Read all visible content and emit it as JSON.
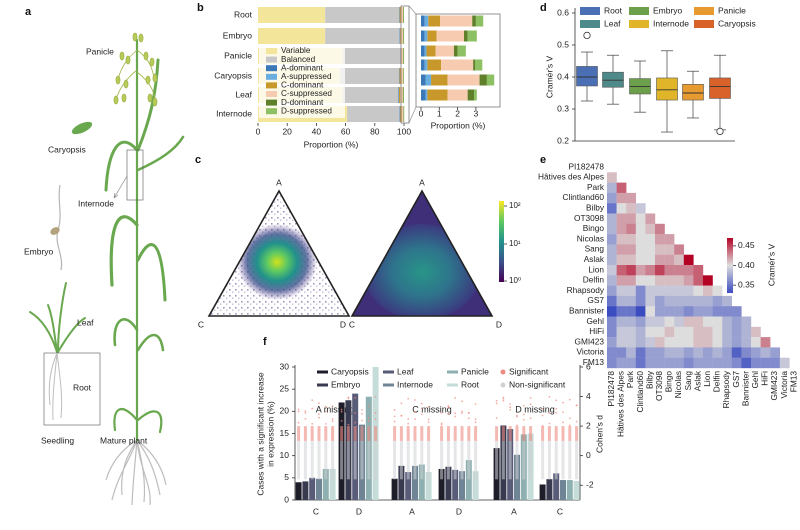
{
  "panel_labels": {
    "a": "a",
    "b": "b",
    "c": "c",
    "d": "d",
    "e": "e",
    "f": "f"
  },
  "panel_a": {
    "labels": {
      "panicle": "Panicle",
      "caryopsis": "Caryopsis",
      "internode": "Internode",
      "embryo": "Embryo",
      "leaf": "Leaf",
      "root": "Root",
      "seedling": "Seedling",
      "mature_plant": "Mature plant"
    }
  },
  "chart_data": {
    "b": {
      "type": "bar",
      "orientation": "horizontal",
      "stacked": true,
      "categories": [
        "Root",
        "Embryo",
        "Panicle",
        "Caryopsis",
        "Leaf",
        "Internode"
      ],
      "xlabel": "Proportion (%)",
      "xlim": [
        0,
        100
      ],
      "xticks": [
        "0",
        "20",
        "40",
        "60",
        "80",
        "100"
      ],
      "legend_placement": "center-left",
      "series": [
        {
          "name": "Variable",
          "color": "#f3e59a",
          "values": [
            46,
            46,
            58,
            56,
            58,
            61
          ]
        },
        {
          "name": "Balanced",
          "color": "#c8c8c8",
          "values": [
            50.6,
            51.0,
            39.6,
            40.6,
            38.0,
            36.0
          ]
        },
        {
          "name": "A-dominant",
          "color": "#3a78b8",
          "values": [
            0.2,
            0.2,
            0.2,
            0.2,
            0.25,
            0.25
          ]
        },
        {
          "name": "A-suppressed",
          "color": "#6aaee0",
          "values": [
            0.2,
            0.15,
            0.1,
            0.15,
            0.3,
            0.1
          ]
        },
        {
          "name": "C-dominant",
          "color": "#c9982a",
          "values": [
            0.65,
            0.5,
            0.5,
            0.75,
            0.9,
            1.1
          ]
        },
        {
          "name": "C-suppressed",
          "color": "#f7cbb0",
          "values": [
            1.75,
            1.5,
            1.0,
            1.75,
            1.75,
            1.1
          ]
        },
        {
          "name": "D-dominant",
          "color": "#5f7f2a",
          "values": [
            0.2,
            0.2,
            0.2,
            0.1,
            0.4,
            0.35
          ]
        },
        {
          "name": "D-suppressed",
          "color": "#8cc063",
          "values": [
            0.4,
            0.5,
            0.45,
            0.4,
            0.4,
            0.15
          ]
        }
      ],
      "inset": {
        "xlabel": "Proportion (%)",
        "xlim": [
          0,
          3.6
        ],
        "xticks": [
          "0",
          "1",
          "2",
          "3"
        ],
        "shows_series": [
          "A-dominant",
          "A-suppressed",
          "C-dominant",
          "C-suppressed",
          "D-dominant",
          "D-suppressed"
        ]
      }
    },
    "c": {
      "type": "heatmap",
      "subtype": "ternary density",
      "vertex_labels": {
        "top": "A",
        "left": "C",
        "right": "D"
      },
      "colorbar": {
        "scale": "log",
        "colormap": "viridis",
        "ticks": [
          "10²",
          "10¹",
          "10⁰"
        ]
      }
    },
    "d": {
      "type": "box",
      "ylabel": "Cramér's V",
      "ylim": [
        0.2,
        0.6
      ],
      "yticks": [
        "0.2",
        "0.3",
        "0.4",
        "0.5",
        "0.6"
      ],
      "legend_placement": "top",
      "boxes": [
        {
          "name": "Root",
          "color": "#4a6fb5",
          "whisker_low": 0.325,
          "q1": 0.372,
          "median": 0.4,
          "q3": 0.433,
          "whisker_high": 0.478,
          "outliers": [
            0.53
          ]
        },
        {
          "name": "Leaf",
          "color": "#4f8a8b",
          "whisker_low": 0.315,
          "q1": 0.368,
          "median": 0.39,
          "q3": 0.415,
          "whisker_high": 0.468,
          "outliers": []
        },
        {
          "name": "Embryo",
          "color": "#6ca04a",
          "whisker_low": 0.29,
          "q1": 0.347,
          "median": 0.37,
          "q3": 0.395,
          "whisker_high": 0.45,
          "outliers": []
        },
        {
          "name": "Internode",
          "color": "#e0b52a",
          "whisker_low": 0.228,
          "q1": 0.328,
          "median": 0.36,
          "q3": 0.397,
          "whisker_high": 0.482,
          "outliers": []
        },
        {
          "name": "Panicle",
          "color": "#e79a2f",
          "whisker_low": 0.272,
          "q1": 0.328,
          "median": 0.35,
          "q3": 0.377,
          "whisker_high": 0.418,
          "outliers": []
        },
        {
          "name": "Caryopsis",
          "color": "#d9622b",
          "whisker_low": 0.235,
          "q1": 0.333,
          "median": 0.37,
          "q3": 0.397,
          "whisker_high": 0.468,
          "outliers": [
            0.23
          ]
        }
      ]
    },
    "e": {
      "type": "heatmap",
      "subtype": "lower triangle",
      "colormap": "coolwarm",
      "colorbar": {
        "label": "Cramér's V",
        "range": [
          0.33,
          0.47
        ],
        "ticks": [
          "0.45",
          "0.40",
          "0.35"
        ]
      },
      "labels": [
        "PI182478",
        "Hâtives des Alpes",
        "Park",
        "Clintland60",
        "Bilby",
        "OT3098",
        "Bingo",
        "Nicolas",
        "Sang",
        "Aslak",
        "Lion",
        "Delfin",
        "Rhapsody",
        "GS7",
        "Bannister",
        "Gehl",
        "HiFi",
        "GMI423",
        "Victoria",
        "FM13"
      ],
      "values": [
        [],
        [
          0.41
        ],
        [
          0.38,
          0.44
        ],
        [
          0.37,
          0.42,
          0.42
        ],
        [
          0.35,
          0.4,
          0.41,
          0.39
        ],
        [
          0.38,
          0.42,
          0.42,
          0.4,
          0.42
        ],
        [
          0.38,
          0.42,
          0.43,
          0.4,
          0.41,
          0.43
        ],
        [
          0.37,
          0.41,
          0.41,
          0.4,
          0.4,
          0.42,
          0.42
        ],
        [
          0.38,
          0.42,
          0.42,
          0.4,
          0.4,
          0.41,
          0.41,
          0.43
        ],
        [
          0.38,
          0.41,
          0.41,
          0.4,
          0.4,
          0.42,
          0.42,
          0.41,
          0.47
        ],
        [
          0.39,
          0.44,
          0.45,
          0.42,
          0.43,
          0.45,
          0.43,
          0.43,
          0.43,
          0.44
        ],
        [
          0.38,
          0.42,
          0.42,
          0.4,
          0.4,
          0.41,
          0.41,
          0.41,
          0.42,
          0.44,
          0.47
        ],
        [
          0.37,
          0.39,
          0.39,
          0.36,
          0.39,
          0.39,
          0.39,
          0.39,
          0.39,
          0.4,
          0.41,
          0.4
        ],
        [
          0.35,
          0.38,
          0.38,
          0.36,
          0.39,
          0.37,
          0.38,
          0.38,
          0.38,
          0.38,
          0.38,
          0.37,
          0.38
        ],
        [
          0.33,
          0.35,
          0.35,
          0.33,
          0.4,
          0.37,
          0.37,
          0.37,
          0.36,
          0.37,
          0.37,
          0.36,
          0.36,
          0.36
        ],
        [
          0.36,
          0.38,
          0.38,
          0.37,
          0.39,
          0.39,
          0.4,
          0.39,
          0.41,
          0.41,
          0.4,
          0.4,
          0.38,
          0.37,
          0.38
        ],
        [
          0.36,
          0.39,
          0.39,
          0.38,
          0.4,
          0.4,
          0.41,
          0.4,
          0.4,
          0.41,
          0.41,
          0.4,
          0.38,
          0.37,
          0.38,
          0.41
        ],
        [
          0.37,
          0.39,
          0.39,
          0.38,
          0.39,
          0.41,
          0.4,
          0.4,
          0.4,
          0.41,
          0.41,
          0.4,
          0.38,
          0.37,
          0.38,
          0.4,
          0.43
        ],
        [
          0.36,
          0.36,
          0.38,
          0.35,
          0.37,
          0.37,
          0.38,
          0.38,
          0.37,
          0.38,
          0.37,
          0.38,
          0.37,
          0.34,
          0.36,
          0.37,
          0.38,
          0.37
        ],
        [
          0.36,
          0.37,
          0.37,
          0.35,
          0.37,
          0.37,
          0.37,
          0.37,
          0.36,
          0.37,
          0.37,
          0.37,
          0.37,
          0.36,
          0.34,
          0.36,
          0.36,
          0.36,
          0.39
        ]
      ]
    },
    "f": {
      "type": "bar",
      "grouped": true,
      "ylabel_lines": [
        "Cases with a significant increase",
        "in expression (%)"
      ],
      "ylim": [
        0,
        30
      ],
      "yticks": [
        "0",
        "5",
        "10",
        "15",
        "20",
        "25",
        "30"
      ],
      "y2label": "Cohen's d",
      "y2lim": [
        -3,
        6
      ],
      "y2ticks": [
        "-2",
        "0",
        "2",
        "4",
        "6"
      ],
      "legend": {
        "tissues": [
          "Caryopsis",
          "Embryo",
          "Leaf",
          "Internode",
          "Panicle",
          "Root"
        ],
        "points": [
          "Significant",
          "Non-significant"
        ]
      },
      "tissue_colors": [
        "#1e1e2a",
        "#383a50",
        "#585c78",
        "#6f8596",
        "#8fb0b0",
        "#c5dcd8"
      ],
      "point_colors": {
        "Significant": "#ef8a80",
        "Non-significant": "#cfd2d4"
      },
      "panels": [
        {
          "title": "A missing",
          "groups": [
            {
              "category": "C",
              "values": [
                4.0,
                4.2,
                5.0,
                4.8,
                7.0,
                7.0
              ]
            },
            {
              "category": "D",
              "values": [
                22.0,
                22.5,
                24.0,
                17.0,
                23.3,
                30.0
              ]
            }
          ]
        },
        {
          "title": "C missing",
          "groups": [
            {
              "category": "A",
              "values": [
                4.8,
                7.7,
                6.3,
                7.7,
                8.0,
                6.3
              ]
            },
            {
              "category": "D",
              "values": [
                7.0,
                7.5,
                6.8,
                6.5,
                9.0,
                6.5
              ]
            }
          ]
        },
        {
          "title": "D missing",
          "groups": [
            {
              "category": "A",
              "values": [
                11.7,
                16.8,
                16.0,
                10.2,
                14.8,
                15.0
              ]
            },
            {
              "category": "C",
              "values": [
                3.5,
                4.7,
                6.0,
                4.5,
                4.5,
                4.3
              ]
            }
          ]
        }
      ]
    }
  }
}
